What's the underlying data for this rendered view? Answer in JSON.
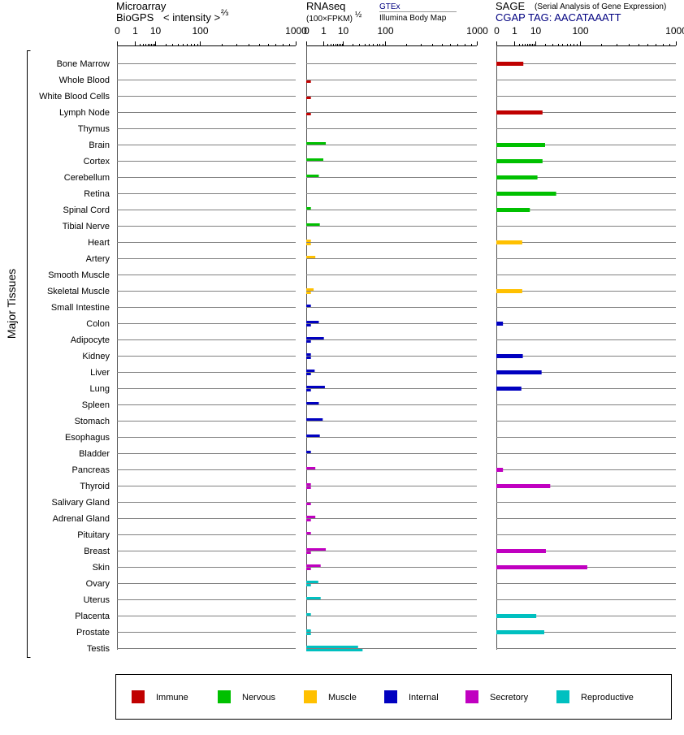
{
  "chart_data": {
    "type": "bar",
    "ylabel": "Major Tissues",
    "categories": [
      "Bone Marrow",
      "Whole Blood",
      "White Blood Cells",
      "Lymph Node",
      "Thymus",
      "Brain",
      "Cortex",
      "Cerebellum",
      "Retina",
      "Spinal Cord",
      "Tibial Nerve",
      "Heart",
      "Artery",
      "Smooth Muscle",
      "Skeletal Muscle",
      "Small Intestine",
      "Colon",
      "Adipocyte",
      "Kidney",
      "Liver",
      "Lung",
      "Spleen",
      "Stomach",
      "Esophagus",
      "Bladder",
      "Pancreas",
      "Thyroid",
      "Salivary Gland",
      "Adrenal Gland",
      "Pituitary",
      "Breast",
      "Skin",
      "Ovary",
      "Uterus",
      "Placenta",
      "Prostate",
      "Testis"
    ],
    "groups": [
      "Immune",
      "Immune",
      "Immune",
      "Immune",
      "Immune",
      "Nervous",
      "Nervous",
      "Nervous",
      "Nervous",
      "Nervous",
      "Nervous",
      "Muscle",
      "Muscle",
      "Muscle",
      "Muscle",
      "Internal",
      "Internal",
      "Internal",
      "Internal",
      "Internal",
      "Internal",
      "Internal",
      "Internal",
      "Internal",
      "Internal",
      "Secretory",
      "Secretory",
      "Secretory",
      "Secretory",
      "Secretory",
      "Secretory",
      "Secretory",
      "Reproductive",
      "Reproductive",
      "Reproductive",
      "Reproductive",
      "Reproductive"
    ],
    "legend": [
      {
        "name": "Immune",
        "color": "#c00000"
      },
      {
        "name": "Nervous",
        "color": "#00c000"
      },
      {
        "name": "Muscle",
        "color": "#ffc000"
      },
      {
        "name": "Internal",
        "color": "#0000c0"
      },
      {
        "name": "Secretory",
        "color": "#c000c0"
      },
      {
        "name": "Reproductive",
        "color": "#00c0c0"
      }
    ],
    "axis_ticks": [
      "0",
      "1",
      "10",
      "100",
      "1000"
    ],
    "panels": [
      {
        "id": "microarray",
        "title_line1": "Microarray",
        "title_line2": "BioGPS",
        "scale_label": "< intensity >",
        "scale_power": "⅔",
        "xlim": [
          0,
          1000
        ],
        "series": [
          {
            "name": "",
            "values": [
              0,
              0,
              0,
              0,
              0,
              0,
              0,
              0,
              0,
              0,
              0,
              0,
              0,
              0,
              0,
              0,
              0,
              0,
              0,
              0,
              0,
              0,
              0,
              0,
              0,
              0,
              0,
              0,
              0,
              0,
              0,
              0,
              0,
              0,
              0,
              0,
              0
            ]
          }
        ]
      },
      {
        "id": "rnaseq",
        "title_line1": "RNAseq",
        "scale_label": "(100×FPKM)",
        "scale_power": "½",
        "source_top": "GTEx",
        "source_bottom": "Illumina Body Map",
        "xlim": [
          0,
          1000
        ],
        "series": [
          {
            "name": "GTEx",
            "values": [
              0,
              0,
              0,
              0,
              0,
              1.5,
              1.0,
              0.4,
              0,
              0.02,
              0.5,
              0.02,
              0.15,
              0,
              0.08,
              0.02,
              0.4,
              1.1,
              0.02,
              0.12,
              1.3,
              0.4,
              0.9,
              0.5,
              0.02,
              0.15,
              0.02,
              0,
              0.15,
              0.02,
              1.5,
              0.6,
              0.35,
              0.6,
              0.02,
              0.02,
              28
            ]
          },
          {
            "name": "Illumina Body Map",
            "values": [
              0,
              0.02,
              0.02,
              0.02,
              0,
              0,
              0,
              0,
              0,
              0,
              0,
              0.02,
              0,
              0,
              0.02,
              0,
              0.02,
              0.02,
              0.02,
              0.02,
              0.02,
              0,
              0,
              0,
              0,
              0,
              0.02,
              0.02,
              0.02,
              0,
              0.02,
              0.02,
              0.02,
              0,
              0,
              0.02,
              36
            ]
          }
        ]
      },
      {
        "id": "sage",
        "title_line1": "SAGE",
        "title_note": "(Serial Analysis of Gene Expression)",
        "tag_line": "CGAP TAG: AACATAAATT",
        "xlim": [
          0,
          1000
        ],
        "series": [
          {
            "name": "",
            "values": [
              3.4,
              0,
              0,
              17,
              0,
              20,
              17,
              12,
              37,
              6.5,
              0,
              3,
              0,
              0,
              3,
              0,
              0.05,
              0,
              3.2,
              16,
              2.7,
              0,
              0,
              0,
              0,
              0.05,
              27,
              0,
              0,
              0,
              21,
              130,
              0,
              0,
              11,
              19,
              0
            ]
          }
        ]
      }
    ]
  }
}
